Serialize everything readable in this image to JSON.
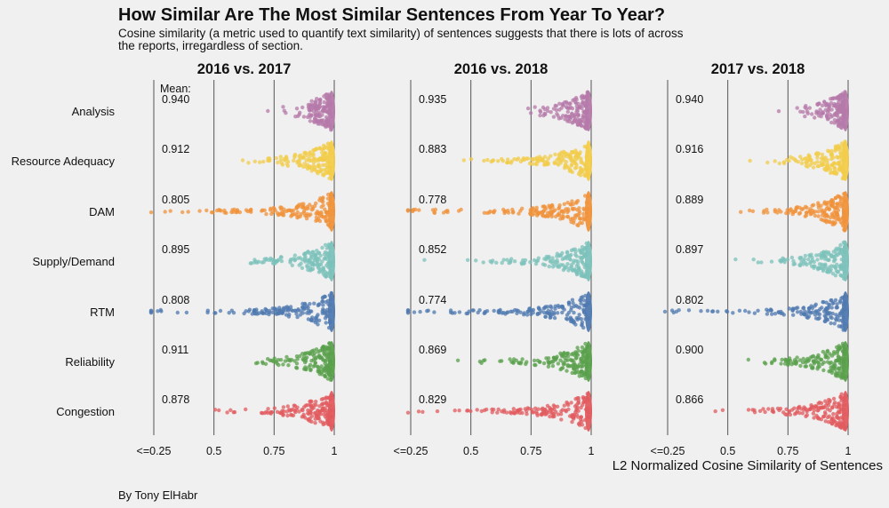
{
  "title": "How Similar Are The Most Similar Sentences From Year To Year?",
  "subtitle": "Cosine similarity (a metric used to quantify text similarity) of sentences suggests that there is lots of across the reports, irregardless of section.",
  "caption": "By Tony ElHabr",
  "chart_data": {
    "type": "scatter",
    "subtype": "beeswarm",
    "xlabel": "L2 Normalized Cosine Similarity of Sentences",
    "mean_header": "Mean:",
    "xlim": [
      0.25,
      1
    ],
    "xticks": [
      0.25,
      0.5,
      0.75,
      1
    ],
    "xtick_labels": [
      "<=0.25",
      "0.5",
      "0.75",
      "1"
    ],
    "categories": [
      "Analysis",
      "Resource Adequacy",
      "DAM",
      "Supply/Demand",
      "RTM",
      "Reliability",
      "Congestion"
    ],
    "colors": {
      "Analysis": "#b57aaa",
      "Resource Adequacy": "#f2cc4a",
      "DAM": "#f0923a",
      "Supply/Demand": "#7cc2bb",
      "RTM": "#4f79b0",
      "Reliability": "#5aa04c",
      "Congestion": "#e15b5f"
    },
    "facets": [
      {
        "title": "2016 vs. 2017",
        "means": [
          "0.940",
          "0.912",
          "0.805",
          "0.895",
          "0.808",
          "0.911",
          "0.878"
        ]
      },
      {
        "title": "2016 vs. 2018",
        "means": [
          "0.935",
          "0.883",
          "0.778",
          "0.852",
          "0.774",
          "0.869",
          "0.829"
        ]
      },
      {
        "title": "2017 vs. 2018",
        "means": [
          "0.940",
          "0.916",
          "0.889",
          "0.897",
          "0.802",
          "0.900",
          "0.866"
        ]
      }
    ]
  }
}
